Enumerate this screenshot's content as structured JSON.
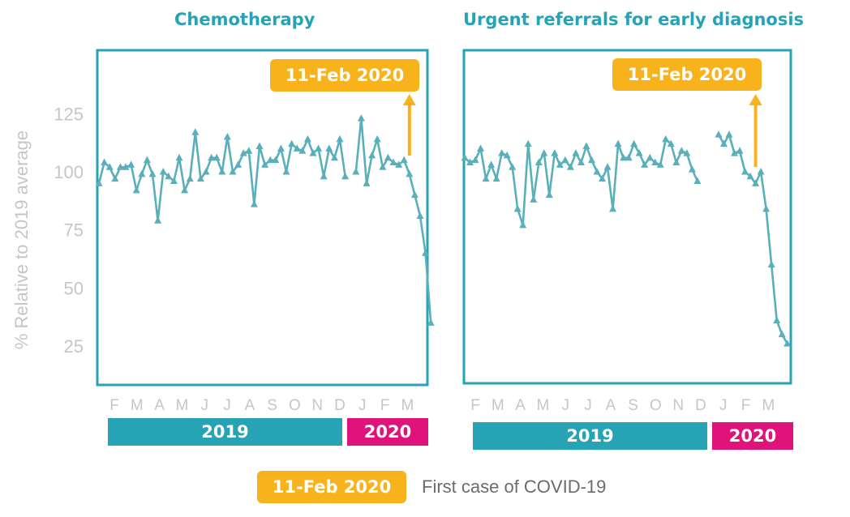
{
  "ylabel": "% Relative to 2019 average",
  "yticks": [
    25,
    50,
    75,
    100,
    125
  ],
  "months": [
    "F",
    "M",
    "A",
    "M",
    "J",
    "J",
    "A",
    "S",
    "O",
    "N",
    "D",
    "J",
    "F",
    "M"
  ],
  "year_bars": [
    "2019",
    "2020"
  ],
  "marker_label": "11-Feb 2020",
  "legend": {
    "marker": "11-Feb 2020",
    "text": "First case of COVID-19"
  },
  "colors": {
    "line": "#5ab0ba",
    "teal": "#26a3b5",
    "magenta": "#e0137a",
    "orange": "#f8b31c",
    "axis_text": "#c6c6c6"
  },
  "chart_data": [
    {
      "type": "line",
      "title": "Chemotherapy",
      "ylabel": "% Relative to 2019 average",
      "ylim": [
        10,
        150
      ],
      "event_marker": {
        "label": "11-Feb 2020",
        "week": 58
      },
      "series": [
        {
          "values": [
            95,
            104,
            102,
            97,
            102,
            102,
            103,
            92,
            99,
            105,
            99,
            79,
            100,
            98,
            96,
            106,
            92,
            97,
            117,
            97,
            100,
            106,
            106,
            100,
            115,
            100,
            103,
            108,
            109,
            86,
            111,
            103,
            105,
            105,
            110,
            100,
            112,
            110,
            109,
            114,
            108,
            110,
            98,
            110,
            106,
            114,
            98,
            null,
            100,
            123,
            95,
            107,
            114,
            102,
            106,
            104,
            103,
            105,
            99,
            90,
            81,
            65,
            35
          ]
        }
      ]
    },
    {
      "type": "line",
      "title": "Urgent referrals for early diagnosis",
      "ylabel": "% Relative to 2019 average",
      "ylim": [
        10,
        150
      ],
      "event_marker": {
        "label": "11-Feb 2020",
        "week": 55
      },
      "series": [
        {
          "values": [
            106,
            104,
            105,
            110,
            97,
            103,
            97,
            108,
            107,
            102,
            84,
            77,
            112,
            88,
            104,
            108,
            90,
            108,
            103,
            105,
            102,
            108,
            104,
            111,
            105,
            100,
            97,
            102,
            84,
            112,
            106,
            106,
            112,
            108,
            103,
            106,
            104,
            103,
            114,
            112,
            104,
            109,
            108,
            101,
            96,
            null,
            null,
            null,
            116,
            112,
            116,
            108,
            109,
            100,
            98,
            95,
            100,
            84,
            60,
            36,
            30,
            26
          ]
        }
      ]
    }
  ]
}
